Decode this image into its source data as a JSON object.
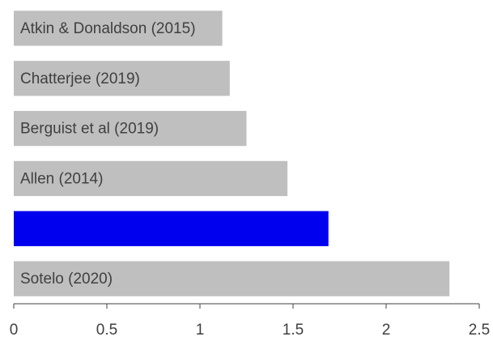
{
  "chart_data": {
    "type": "barh",
    "categories": [
      "Atkin & Donaldson (2015)",
      "Chatterjee (2019)",
      "Berguist et al (2019)",
      "Allen (2014)",
      null,
      "Sotelo (2020)"
    ],
    "values": [
      1.12,
      1.16,
      1.25,
      1.47,
      1.69,
      2.34
    ],
    "colors": [
      "#bfbfbf",
      "#bfbfbf",
      "#bfbfbf",
      "#bfbfbf",
      "#0000ee",
      "#bfbfbf"
    ],
    "xlim": [
      0,
      2.5
    ],
    "xticks": [
      0,
      0.5,
      1,
      1.5,
      2,
      2.5
    ]
  }
}
